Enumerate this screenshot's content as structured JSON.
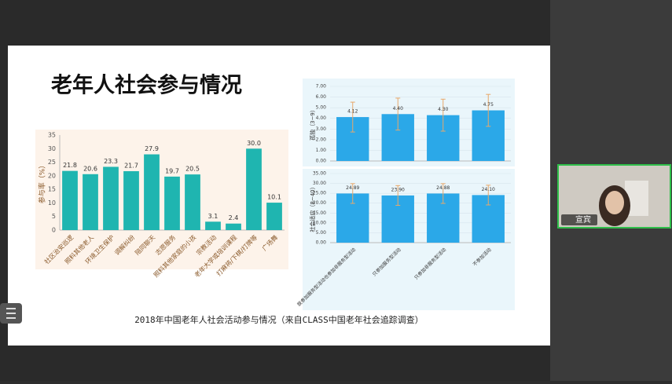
{
  "slide": {
    "title": "老年人社会参与情况",
    "caption": "2018年中国老年人社会活动参与情况（来自CLASS中国老年社会追踪调查）"
  },
  "participant": {
    "name": "宣宾"
  },
  "chart_data": [
    {
      "type": "bar",
      "ylabel": "参与率（%）",
      "categories": [
        "社区治安巡逻",
        "照料其他老人",
        "环境卫生保护",
        "调解纠纷",
        "陪同聊天",
        "志愿服务",
        "照料其他家庭的小孩",
        "宗教活动",
        "老年大学或培训课程",
        "打麻将/下棋/打牌等",
        "广场舞"
      ],
      "values": [
        21.8,
        20.6,
        23.3,
        21.7,
        27.9,
        19.7,
        20.5,
        3.1,
        2.4,
        30.0,
        10.1
      ],
      "value_labels": [
        "21.8",
        "20.6",
        "23.3",
        "21.7",
        "27.9",
        "19.7",
        "20.5",
        "3.1",
        "2.4",
        "30.0",
        "10.1"
      ],
      "color": "#1fb5b0",
      "ylim": [
        0,
        35
      ],
      "yticks": [
        0,
        5,
        10,
        15,
        20,
        25,
        30,
        35
      ],
      "grid": false
    },
    {
      "type": "errorbar",
      "ylabel": "孤独（3~9）",
      "categories": [
        null,
        null,
        null,
        null
      ],
      "values": [
        4.12,
        4.4,
        4.3,
        4.75
      ],
      "value_labels": [
        "4.12",
        "4.40",
        "4.30",
        "4.75"
      ],
      "errors": [
        1.4,
        1.5,
        1.5,
        1.5
      ],
      "color": "#2ba8e8",
      "error_color": "#e8a86a",
      "ylim": [
        0,
        7
      ],
      "yticks": [
        {
          "value": 0,
          "label": "0.00"
        },
        {
          "value": 1,
          "label": "1.00"
        },
        {
          "value": 2,
          "label": "2.00"
        },
        {
          "value": 3,
          "label": "3.00"
        },
        {
          "value": 4,
          "label": "4.00"
        },
        {
          "value": 5,
          "label": "5.00"
        },
        {
          "value": 6,
          "label": "6.00"
        },
        {
          "value": 7,
          "label": "7.00"
        }
      ],
      "grid": true
    },
    {
      "type": "errorbar",
      "ylabel": "社会适应（8~40）",
      "categories": [
        "既参加服务型活动也参加非服务型活动",
        "只参加服务型活动",
        "只参加非服务型活动",
        "不参加活动"
      ],
      "values": [
        24.89,
        23.9,
        24.88,
        24.1
      ],
      "value_labels": [
        "24.89",
        "23.90",
        "24.88",
        "24.10"
      ],
      "errors": [
        5,
        5,
        5,
        5
      ],
      "color": "#2ba8e8",
      "error_color": "#e8a86a",
      "ylim": [
        0,
        35
      ],
      "yticks": [
        {
          "value": 0,
          "label": "0.00"
        },
        {
          "value": 5,
          "label": "5.00"
        },
        {
          "value": 10,
          "label": "10.00"
        },
        {
          "value": 15,
          "label": "15.00"
        },
        {
          "value": 20,
          "label": "20.00"
        },
        {
          "value": 25,
          "label": "25.00"
        },
        {
          "value": 30,
          "label": "30.00"
        },
        {
          "value": 35,
          "label": "35.00"
        }
      ],
      "grid": true
    }
  ]
}
